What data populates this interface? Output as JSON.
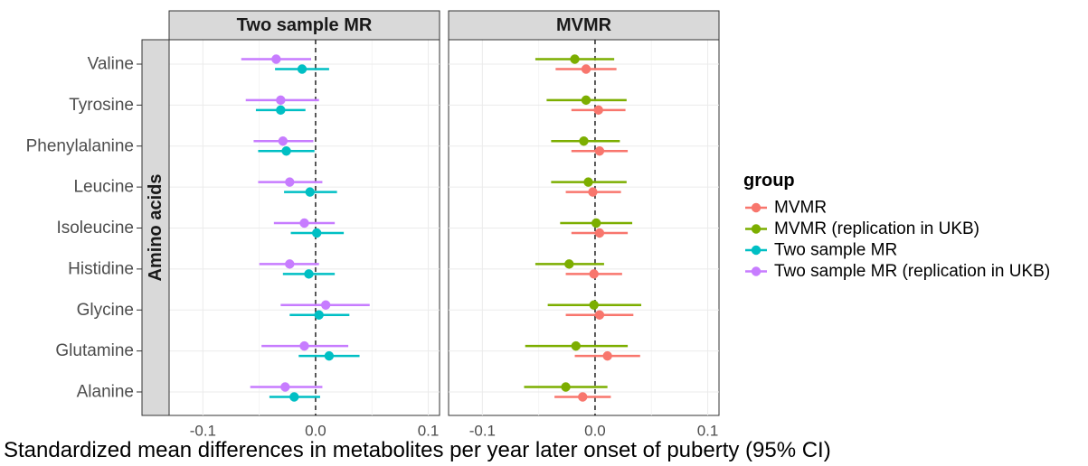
{
  "chart_data": {
    "type": "scatter",
    "subtype": "forest-plot",
    "xlabel": "Standardized mean differences in metabolites per year later onset of puberty (95% CI)",
    "ylabel": "",
    "xlim": [
      -0.13,
      0.11
    ],
    "xticks": [
      "-0.1",
      "0.0",
      "0.1"
    ],
    "xtick_values": [
      -0.1,
      0.0,
      0.1
    ],
    "reference_line": 0,
    "grid": true,
    "legend_position": "right",
    "legend_title": "group",
    "row_group_label": "Amino acids",
    "categories": [
      "Valine",
      "Tyrosine",
      "Phenylalanine",
      "Leucine",
      "Isoleucine",
      "Histidine",
      "Glycine",
      "Glutamine",
      "Alanine"
    ],
    "panels": [
      {
        "title": "Two sample MR",
        "series": [
          {
            "name": "Two sample MR (replication in UKB)",
            "color": "#C77CFF",
            "estimates": [
              -0.035,
              -0.031,
              -0.029,
              -0.023,
              -0.01,
              -0.023,
              0.009,
              -0.01,
              -0.027
            ],
            "lower": [
              -0.066,
              -0.062,
              -0.055,
              -0.051,
              -0.037,
              -0.05,
              -0.031,
              -0.048,
              -0.058
            ],
            "upper": [
              -0.004,
              0.003,
              -0.002,
              0.006,
              0.017,
              0.003,
              0.048,
              0.029,
              0.006
            ]
          },
          {
            "name": "Two sample MR",
            "color": "#00BFC4",
            "estimates": [
              -0.012,
              -0.031,
              -0.026,
              -0.005,
              0.001,
              -0.006,
              0.003,
              0.012,
              -0.019
            ],
            "lower": [
              -0.036,
              -0.053,
              -0.051,
              -0.028,
              -0.022,
              -0.029,
              -0.023,
              -0.015,
              -0.041
            ],
            "upper": [
              0.012,
              -0.009,
              -0.001,
              0.019,
              0.025,
              0.017,
              0.03,
              0.039,
              0.004
            ]
          }
        ]
      },
      {
        "title": "MVMR",
        "series": [
          {
            "name": "MVMR (replication in UKB)",
            "color": "#7CAE00",
            "estimates": [
              -0.018,
              -0.008,
              -0.01,
              -0.006,
              0.001,
              -0.023,
              -0.001,
              -0.017,
              -0.026
            ],
            "lower": [
              -0.053,
              -0.043,
              -0.039,
              -0.039,
              -0.031,
              -0.053,
              -0.042,
              -0.062,
              -0.063
            ],
            "upper": [
              0.017,
              0.028,
              0.022,
              0.028,
              0.033,
              0.008,
              0.041,
              0.029,
              0.011
            ]
          },
          {
            "name": "MVMR",
            "color": "#F8766D",
            "estimates": [
              -0.008,
              0.003,
              0.004,
              -0.002,
              0.004,
              -0.001,
              0.004,
              0.011,
              -0.011
            ],
            "lower": [
              -0.035,
              -0.021,
              -0.021,
              -0.026,
              -0.021,
              -0.026,
              -0.026,
              -0.018,
              -0.036
            ],
            "upper": [
              0.019,
              0.027,
              0.029,
              0.023,
              0.029,
              0.024,
              0.034,
              0.04,
              0.014
            ]
          }
        ]
      }
    ],
    "legend": [
      {
        "label": "MVMR",
        "color": "#F8766D"
      },
      {
        "label": "MVMR (replication in UKB)",
        "color": "#7CAE00"
      },
      {
        "label": "Two sample MR",
        "color": "#00BFC4"
      },
      {
        "label": "Two sample MR (replication in UKB)",
        "color": "#C77CFF"
      }
    ]
  }
}
